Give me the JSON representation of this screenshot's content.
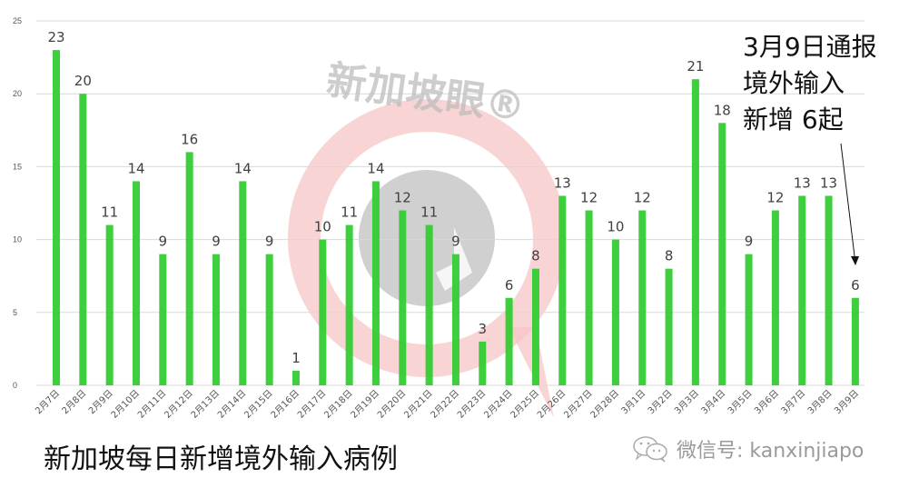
{
  "chart_data": {
    "type": "bar",
    "title": "新加坡每日新增境外输入病例",
    "xlabel": "",
    "ylabel": "",
    "ylim": [
      0,
      25
    ],
    "yticks": [
      0,
      5,
      10,
      15,
      20,
      25
    ],
    "grid": true,
    "legend": null,
    "bar_color": "#33cc33",
    "categories": [
      "2月7日",
      "2月8日",
      "2月9日",
      "2月10日",
      "2月11日",
      "2月12日",
      "2月13日",
      "2月14日",
      "2月15日",
      "2月16日",
      "2月17日",
      "2月18日",
      "2月19日",
      "2月20日",
      "2月21日",
      "2月22日",
      "2月23日",
      "2月24日",
      "2月25日",
      "2月26日",
      "2月27日",
      "2月28日",
      "3月1日",
      "3月2日",
      "3月3日",
      "3月4日",
      "3月5日",
      "3月6日",
      "3月7日",
      "3月8日",
      "3月9日"
    ],
    "values": [
      23,
      20,
      11,
      14,
      9,
      16,
      9,
      14,
      9,
      1,
      10,
      11,
      14,
      12,
      11,
      9,
      3,
      6,
      8,
      13,
      12,
      10,
      12,
      8,
      21,
      18,
      9,
      12,
      13,
      13,
      6
    ],
    "annotations": [
      {
        "text": "3月9日通报\n境外输入\n新增 6起",
        "points_to": "3月9日"
      }
    ]
  },
  "title": "新加坡每日新增境外输入病例",
  "annotation": {
    "line1": "3月9日通报",
    "line2": "境外输入",
    "line3": "新增 6起"
  },
  "watermark": {
    "brand": "新加坡眼®",
    "wechat_label": "微信号: kanxinjiapo",
    "icon": "wechat-icon"
  }
}
